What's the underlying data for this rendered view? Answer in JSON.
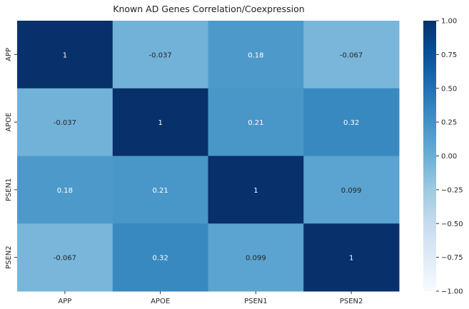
{
  "chart_data": {
    "type": "heatmap",
    "title": "Known AD Genes Correlation/Coexpression",
    "x_categories": [
      "APP",
      "APOE",
      "PSEN1",
      "PSEN2"
    ],
    "y_categories": [
      "APP",
      "APOE",
      "PSEN1",
      "PSEN2"
    ],
    "values": [
      [
        1,
        -0.037,
        0.18,
        -0.067
      ],
      [
        -0.037,
        1,
        0.21,
        0.32
      ],
      [
        0.18,
        0.21,
        1,
        0.099
      ],
      [
        -0.067,
        0.32,
        0.099,
        1
      ]
    ],
    "cell_labels": [
      [
        "1",
        "-0.037",
        "0.18",
        "-0.067"
      ],
      [
        "-0.037",
        "1",
        "0.21",
        "0.32"
      ],
      [
        "0.18",
        "0.21",
        "1",
        "0.099"
      ],
      [
        "-0.067",
        "0.32",
        "0.099",
        "1"
      ]
    ],
    "vmin": -1,
    "vmax": 1,
    "colormap": "Blues",
    "colorbar_ticks": [
      1.0,
      0.75,
      0.5,
      0.25,
      0.0,
      -0.25,
      -0.5,
      -0.75,
      -1.0
    ],
    "colorbar_tick_labels": [
      "1.00",
      "0.75",
      "0.50",
      "0.25",
      "0.00",
      "−0.25",
      "−0.50",
      "−0.75",
      "−1.00"
    ],
    "legend": "colorbar-right"
  }
}
